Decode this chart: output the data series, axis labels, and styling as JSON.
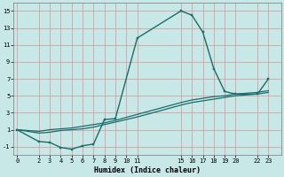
{
  "xlabel": "Humidex (Indice chaleur)",
  "bg_color": "#c8e8e8",
  "grid_color": "#d4a0a0",
  "line_color": "#1a6b6b",
  "xticks": [
    0,
    2,
    3,
    4,
    5,
    6,
    7,
    8,
    9,
    10,
    11,
    15,
    16,
    17,
    18,
    19,
    20,
    22,
    23
  ],
  "yticks": [
    -1,
    1,
    3,
    5,
    7,
    9,
    11,
    13,
    15
  ],
  "xlim": [
    -0.3,
    24.2
  ],
  "ylim": [
    -2.0,
    16.0
  ],
  "main_x": [
    0,
    2,
    3,
    4,
    5,
    6,
    7,
    8,
    9,
    11,
    15,
    16,
    17,
    18,
    19,
    20,
    22,
    23
  ],
  "main_y": [
    1.0,
    -0.4,
    -0.5,
    -1.1,
    -1.3,
    -0.9,
    -0.7,
    2.2,
    2.3,
    11.8,
    15.0,
    14.5,
    12.5,
    8.2,
    5.5,
    5.2,
    5.2,
    7.0
  ],
  "flat1_x": [
    0,
    2,
    3,
    4,
    5,
    6,
    7,
    8,
    9,
    11,
    15,
    16,
    17,
    18,
    19,
    20,
    22,
    23
  ],
  "flat1_y": [
    1.0,
    0.8,
    1.0,
    1.1,
    1.2,
    1.4,
    1.6,
    1.8,
    2.1,
    2.8,
    4.2,
    4.5,
    4.7,
    4.9,
    5.0,
    5.2,
    5.4,
    5.6
  ],
  "flat2_x": [
    0,
    2,
    3,
    4,
    5,
    6,
    7,
    8,
    9,
    11,
    15,
    16,
    17,
    18,
    19,
    20,
    22,
    23
  ],
  "flat2_y": [
    1.0,
    0.6,
    0.7,
    0.9,
    1.0,
    1.1,
    1.3,
    1.6,
    1.9,
    2.5,
    3.9,
    4.2,
    4.4,
    4.6,
    4.8,
    5.0,
    5.2,
    5.4
  ]
}
